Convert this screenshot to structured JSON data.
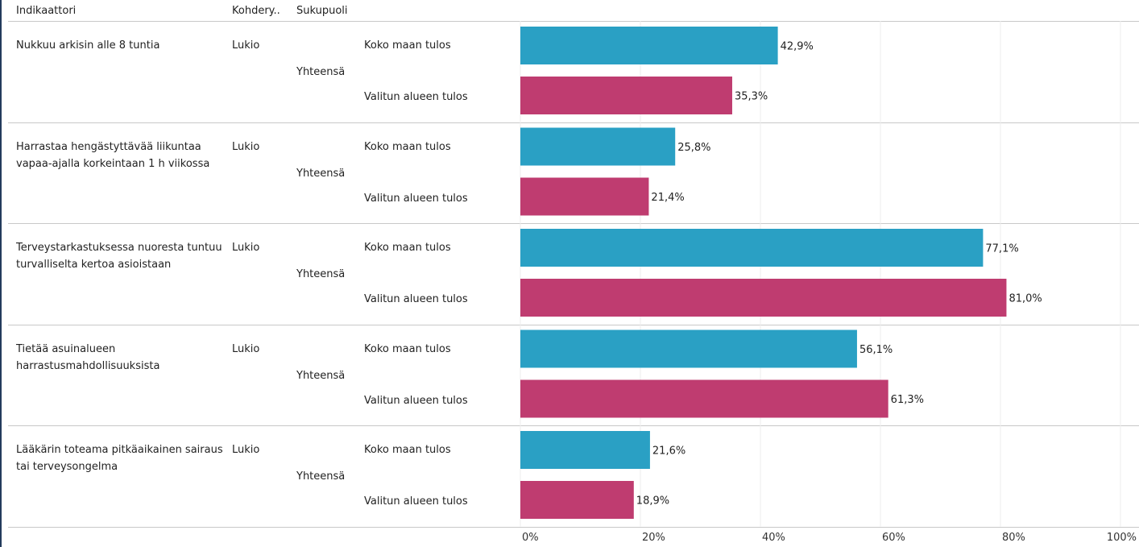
{
  "headers": {
    "indicator": "Indikaattori",
    "target": "Kohdery..",
    "gender": "Sukupuoli"
  },
  "rows": [
    {
      "indicator": "Nukkuu arkisin alle 8 tuntia",
      "target": "Lukio",
      "gender": "Yhteensä",
      "series_labels": [
        "Koko maan tulos",
        "Valitun alueen tulos"
      ],
      "values": [
        42.9,
        35.3
      ],
      "value_labels": [
        "42,9%",
        "35,3%"
      ]
    },
    {
      "indicator": "Harrastaa hengästyttävää liikuntaa vapaa-ajalla korkeintaan 1 h viikossa",
      "target": "Lukio",
      "gender": "Yhteensä",
      "series_labels": [
        "Koko maan tulos",
        "Valitun alueen tulos"
      ],
      "values": [
        25.8,
        21.4
      ],
      "value_labels": [
        "25,8%",
        "21,4%"
      ]
    },
    {
      "indicator": "Terveystarkastuksessa nuoresta tuntuu turvalliselta kertoa asioistaan",
      "target": "Lukio",
      "gender": "Yhteensä",
      "series_labels": [
        "Koko maan tulos",
        "Valitun alueen tulos"
      ],
      "values": [
        77.1,
        81.0
      ],
      "value_labels": [
        "77,1%",
        "81,0%"
      ]
    },
    {
      "indicator": "Tietää asuinalueen harrastusmahdollisuuksista",
      "target": "Lukio",
      "gender": "Yhteensä",
      "series_labels": [
        "Koko maan tulos",
        "Valitun alueen tulos"
      ],
      "values": [
        56.1,
        61.3
      ],
      "value_labels": [
        "56,1%",
        "61,3%"
      ]
    },
    {
      "indicator": "Lääkärin toteama pitkäaikainen sairaus tai terveysongelma",
      "target": "Lukio",
      "gender": "Yhteensä",
      "series_labels": [
        "Koko maan tulos",
        "Valitun alueen tulos"
      ],
      "values": [
        21.6,
        18.9
      ],
      "value_labels": [
        "21,6%",
        "18,9%"
      ]
    }
  ],
  "chart_data": {
    "type": "bar",
    "orientation": "horizontal",
    "categories": [
      "Nukkuu arkisin alle 8 tuntia",
      "Harrastaa hengästyttävää liikuntaa vapaa-ajalla korkeintaan 1 h viikossa",
      "Terveystarkastuksessa nuoresta tuntuu turvalliselta kertoa asioistaan",
      "Tietää asuinalueen harrastusmahdollisuuksista",
      "Lääkärin toteama pitkäaikainen sairaus tai terveysongelma"
    ],
    "series": [
      {
        "name": "Koko maan tulos",
        "values": [
          42.9,
          25.8,
          77.1,
          56.1,
          21.6
        ],
        "color": "#2aa0c4"
      },
      {
        "name": "Valitun alueen tulos",
        "values": [
          35.3,
          21.4,
          81.0,
          61.3,
          18.9
        ],
        "color": "#bf3c70"
      }
    ],
    "xlim": [
      0,
      100
    ],
    "xticks": [
      0,
      20,
      40,
      60,
      80,
      100
    ],
    "xtick_labels": [
      "0%",
      "20%",
      "40%",
      "60%",
      "80%",
      "100%"
    ],
    "grid": true,
    "value_labels": true
  }
}
